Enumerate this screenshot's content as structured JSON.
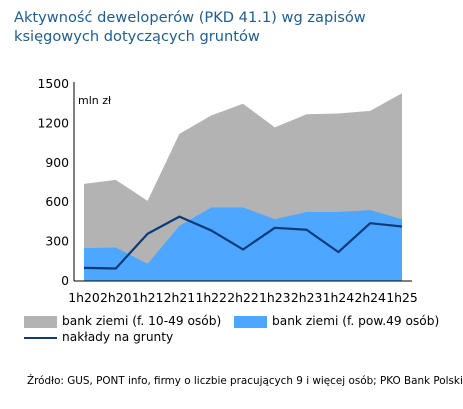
{
  "chart_data": {
    "type": "area",
    "title": "Aktywność deweloperów (PKD 41.1) wg zapisów księgowych dotyczących gruntów",
    "unit_label": "mln zł",
    "categories": [
      "1h20",
      "2h20",
      "1h21",
      "2h21",
      "1h22",
      "2h22",
      "1h23",
      "2h23",
      "1h24",
      "2h24",
      "1h25"
    ],
    "ylim": [
      0,
      1500
    ],
    "yticks": [
      0,
      300,
      600,
      900,
      1200,
      1500
    ],
    "series": [
      {
        "name": "bank ziemi (f. 10-49 osób)",
        "kind": "area-stacked-top",
        "color": "#b3b3b3",
        "values": [
          740,
          770,
          610,
          1120,
          1260,
          1350,
          1170,
          1270,
          1275,
          1295,
          1430
        ]
      },
      {
        "name": "bank ziemi (f. pow.49 osób)",
        "kind": "area",
        "color": "#4da6ff",
        "values": [
          250,
          255,
          130,
          420,
          560,
          560,
          470,
          525,
          525,
          540,
          470
        ]
      },
      {
        "name": "nakłady na grunty",
        "kind": "line",
        "color": "#0d3b7a",
        "values": [
          100,
          95,
          360,
          490,
          385,
          240,
          405,
          390,
          220,
          440,
          415
        ]
      }
    ]
  },
  "legend": {
    "item1": "bank ziemi (f. 10-49 osób)",
    "item2": "bank ziemi (f. pow.49 osób)",
    "item3": "nakłady na grunty"
  },
  "source": "Źródło: GUS, PONT info, firmy o liczbie pracujących 9 i więcej osób; PKO Bank Polski"
}
